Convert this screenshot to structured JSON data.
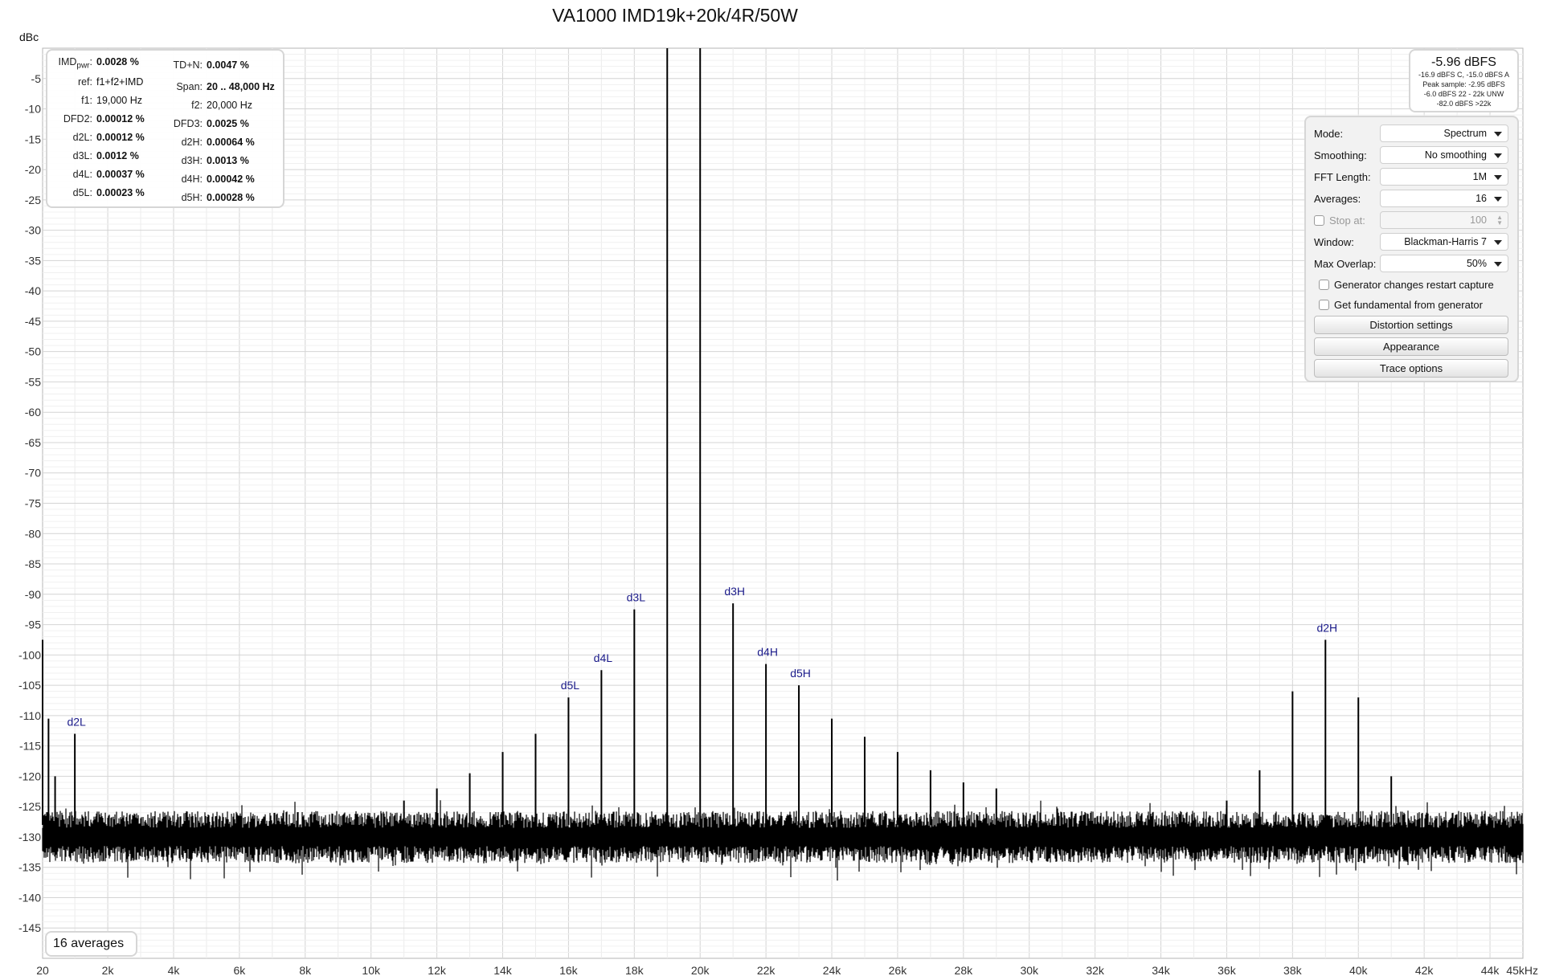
{
  "chart_data": {
    "type": "line",
    "title": "VA1000 IMD19k+20k/4R/50W",
    "ylabel": "dBc",
    "xlabel": "",
    "x_unit_label": "45kHz",
    "ylim": [
      -150,
      0
    ],
    "xlim": [
      20,
      45000
    ],
    "grid": true,
    "y_ticks": [
      "-5",
      "-10",
      "-15",
      "-20",
      "-25",
      "-30",
      "-35",
      "-40",
      "-45",
      "-50",
      "-55",
      "-60",
      "-65",
      "-70",
      "-75",
      "-80",
      "-85",
      "-90",
      "-95",
      "-100",
      "-105",
      "-110",
      "-115",
      "-120",
      "-125",
      "-130",
      "-135",
      "-140",
      "-145"
    ],
    "x_ticks": [
      "20",
      "2k",
      "4k",
      "6k",
      "8k",
      "10k",
      "12k",
      "14k",
      "16k",
      "18k",
      "20k",
      "22k",
      "24k",
      "26k",
      "28k",
      "30k",
      "32k",
      "34k",
      "36k",
      "38k",
      "40k",
      "42k",
      "44k"
    ],
    "noise_floor_db": -130,
    "series": [
      {
        "peaks": [
          {
            "x": 19000,
            "y": 0
          },
          {
            "x": 20000,
            "y": 0
          },
          {
            "x": 18000,
            "y": -92.5,
            "label": "d3L"
          },
          {
            "x": 21000,
            "y": -91.5,
            "label": "d3H"
          },
          {
            "x": 17000,
            "y": -102.5,
            "label": "d4L"
          },
          {
            "x": 22000,
            "y": -101.5,
            "label": "d4H"
          },
          {
            "x": 16000,
            "y": -107,
            "label": "d5L"
          },
          {
            "x": 23000,
            "y": -105,
            "label": "d5H"
          },
          {
            "x": 1000,
            "y": -113,
            "label": "d2L"
          },
          {
            "x": 39000,
            "y": -97.5,
            "label": "d2H"
          },
          {
            "x": 15000,
            "y": -113
          },
          {
            "x": 24000,
            "y": -110.5
          },
          {
            "x": 14000,
            "y": -116
          },
          {
            "x": 25000,
            "y": -113.5
          },
          {
            "x": 13000,
            "y": -119.5
          },
          {
            "x": 26000,
            "y": -116
          },
          {
            "x": 12000,
            "y": -122
          },
          {
            "x": 27000,
            "y": -119
          },
          {
            "x": 11000,
            "y": -124
          },
          {
            "x": 28000,
            "y": -121
          },
          {
            "x": 29000,
            "y": -122
          },
          {
            "x": 38000,
            "y": -106
          },
          {
            "x": 40000,
            "y": -107
          },
          {
            "x": 37000,
            "y": -119
          },
          {
            "x": 41000,
            "y": -120
          },
          {
            "x": 36000,
            "y": -124
          },
          {
            "x": 20,
            "y": -97.5
          },
          {
            "x": 200,
            "y": -110.5
          },
          {
            "x": 400,
            "y": -120
          }
        ]
      }
    ]
  },
  "stats": {
    "imd_key": "IMD",
    "imd_sub": "pwr",
    "imd_val": "0.0028 %",
    "ref_key": "ref:",
    "ref_val": "f1+f2+IMD",
    "f1_key": "f1:",
    "f1_val": "19,000 Hz",
    "dfd2_key": "DFD2:",
    "dfd2_val": "0.00012 %",
    "d2l_key": "d2L:",
    "d2l_val": "0.00012 %",
    "d3l_key": "d3L:",
    "d3l_val": "0.0012 %",
    "d4l_key": "d4L:",
    "d4l_val": "0.00037 %",
    "d5l_key": "d5L:",
    "d5l_val": "0.00023 %",
    "tdn_key": "TD+N:",
    "tdn_val": "0.0047 %",
    "span_key": "Span:",
    "span_val": "20 .. 48,000 Hz",
    "f2_key": "f2:",
    "f2_val": "20,000 Hz",
    "dfd3_key": "DFD3:",
    "dfd3_val": "0.0025 %",
    "d2h_key": "d2H:",
    "d2h_val": "0.00064 %",
    "d3h_key": "d3H:",
    "d3h_val": "0.0013 %",
    "d4h_key": "d4H:",
    "d4h_val": "0.00042 %",
    "d5h_key": "d5H:",
    "d5h_val": "0.00028 %"
  },
  "level": {
    "main": "-5.96 dBFS",
    "line1": "-16.9 dBFS C, -15.0 dBFS A",
    "line2": "Peak sample: -2.95 dBFS",
    "line3": "-6.0 dBFS 22 - 22k UNW",
    "line4": "-82.0 dBFS >22k"
  },
  "controls": {
    "mode_label": "Mode:",
    "mode_value": "Spectrum",
    "smoothing_label": "Smoothing:",
    "smoothing_value": "No smoothing",
    "fft_label": "FFT Length:",
    "fft_value": "1M",
    "averages_label": "Averages:",
    "averages_value": "16",
    "stop_label": "Stop at:",
    "stop_value": "100",
    "window_label": "Window:",
    "window_value": "Blackman-Harris 7",
    "overlap_label": "Max Overlap:",
    "overlap_value": "50%",
    "gen_restart_label": "Generator changes restart capture",
    "get_fund_label": "Get fundamental from generator",
    "distortion_btn": "Distortion settings",
    "appearance_btn": "Appearance",
    "trace_btn": "Trace options"
  },
  "averages_badge": "16 averages"
}
